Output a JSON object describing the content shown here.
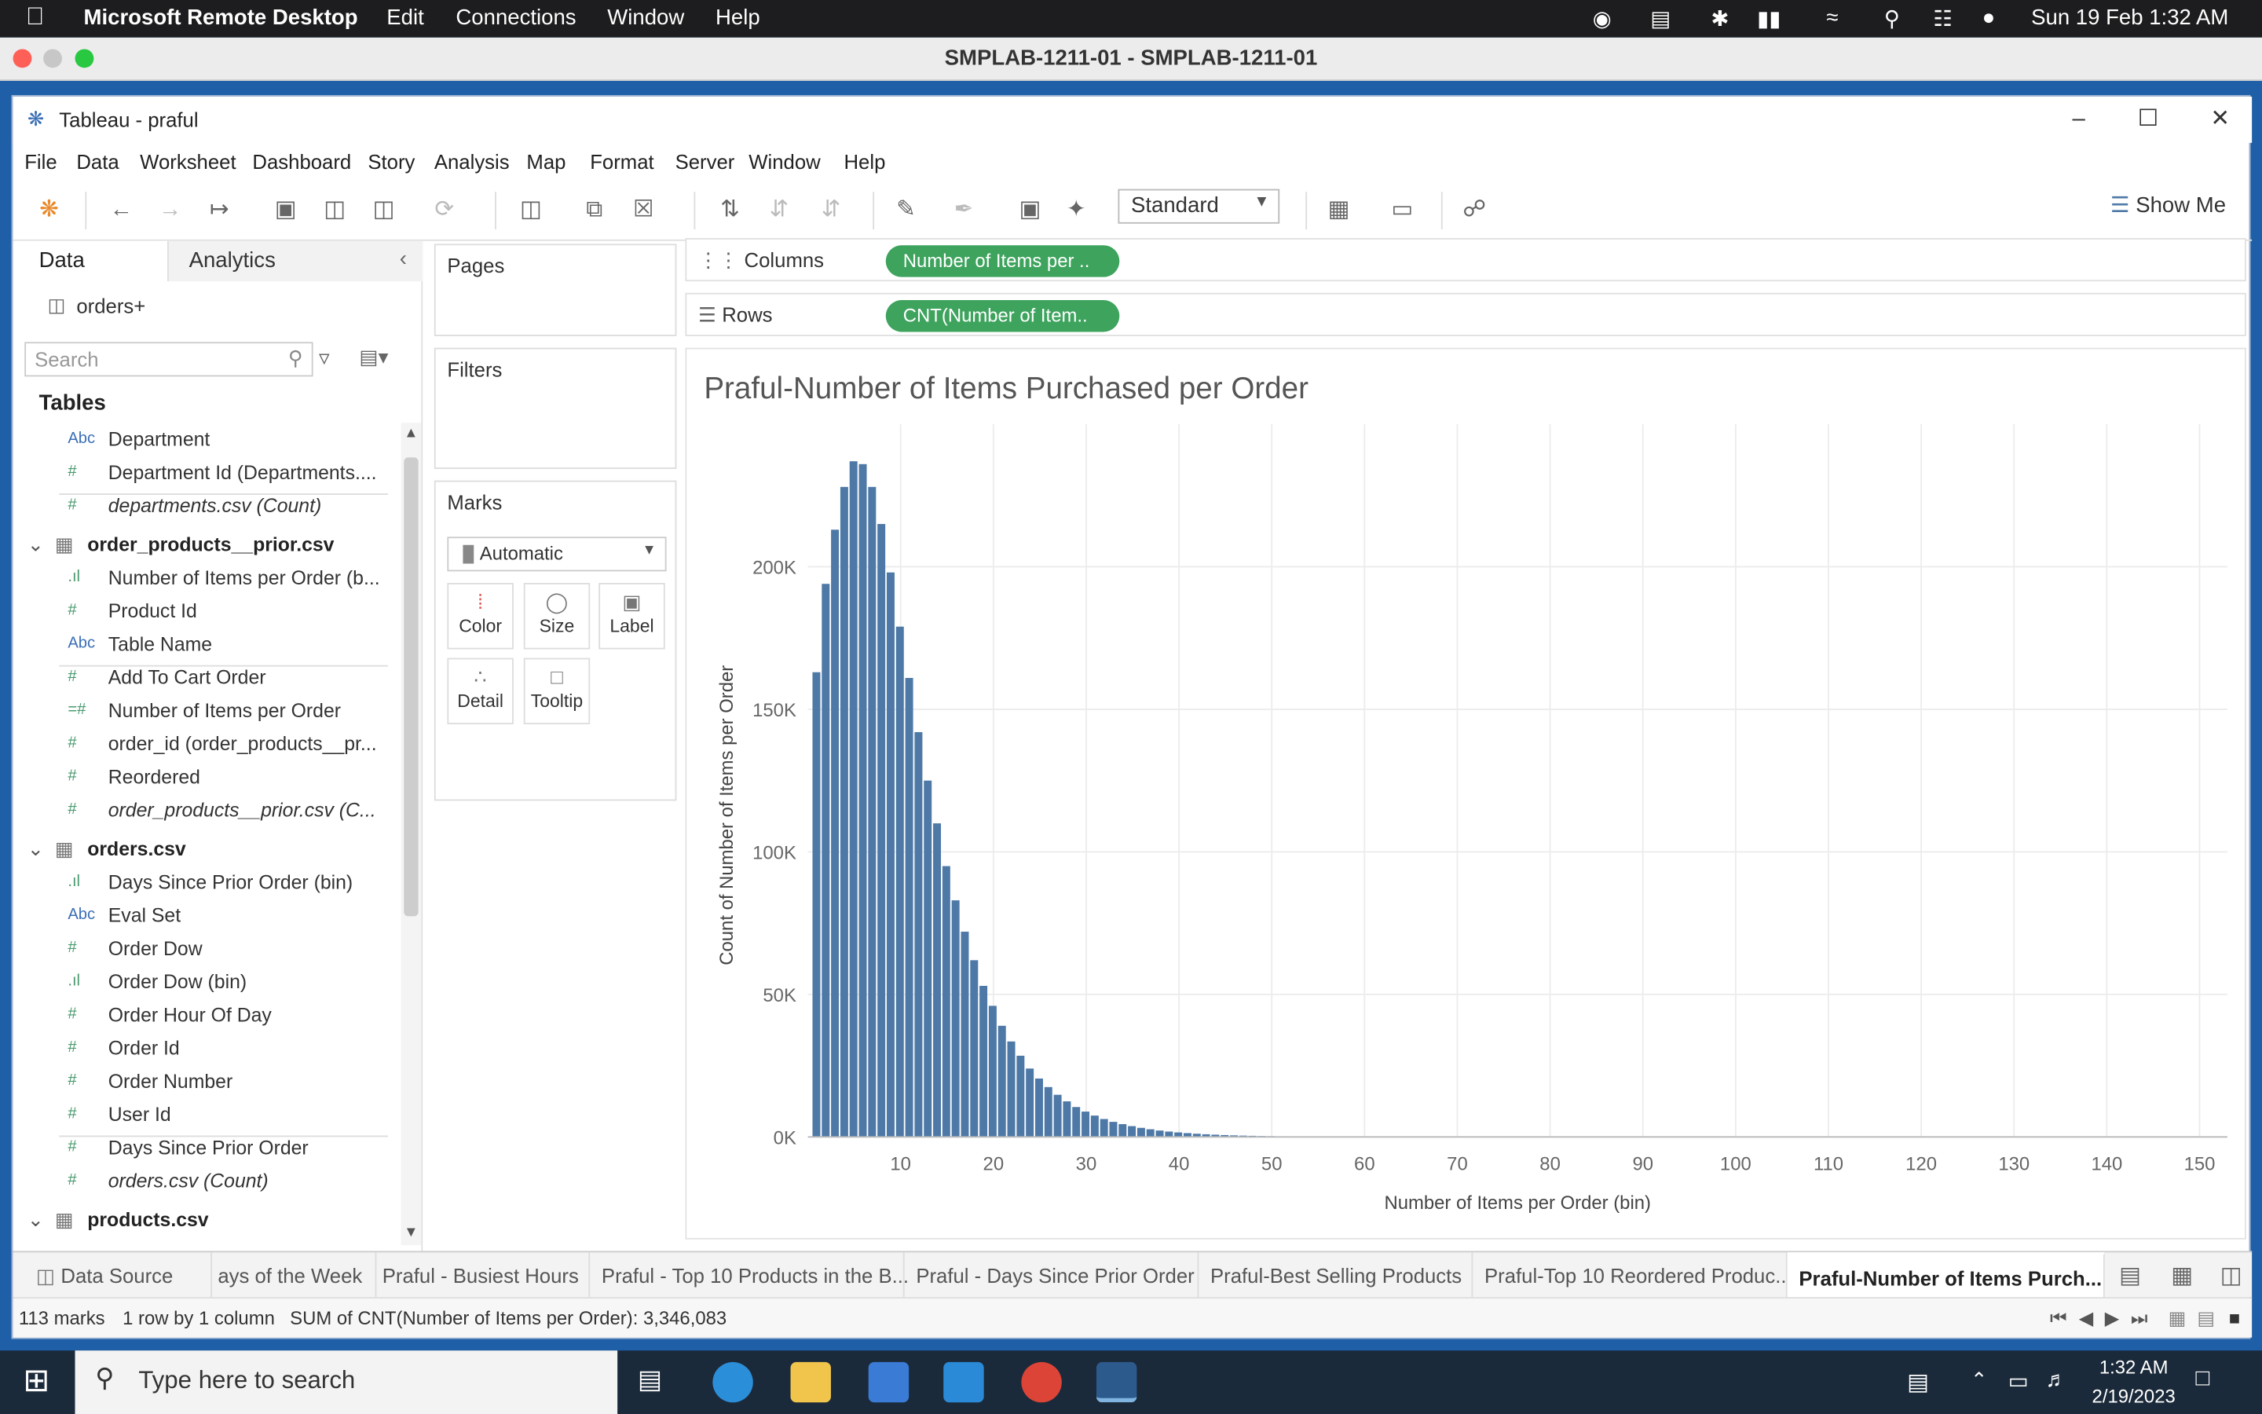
{
  "mac_menubar": {
    "app": "Microsoft Remote Desktop",
    "items": [
      "Edit",
      "Connections",
      "Window",
      "Help"
    ],
    "datetime": "Sun 19 Feb  1:32 AM"
  },
  "rdp_title": "SMPLAB-1211-01 - SMPLAB-1211-01",
  "tableau": {
    "title": "Tableau - praful",
    "menu": [
      "File",
      "Data",
      "Worksheet",
      "Dashboard",
      "Story",
      "Analysis",
      "Map",
      "Format",
      "Server",
      "Window",
      "Help"
    ],
    "fit_mode": "Standard",
    "show_me": "Show Me"
  },
  "left_pane": {
    "tab_data": "Data",
    "tab_analytics": "Analytics",
    "datasource": "orders+",
    "search_placeholder": "Search",
    "tables_heading": "Tables",
    "fields": [
      {
        "icon": "Abc",
        "name": "Department",
        "italic": false
      },
      {
        "icon": "#",
        "name": "Department Id (Departments....",
        "italic": false
      },
      {
        "icon": "#",
        "name": "departments.csv (Count)",
        "italic": true
      },
      {
        "icon": "tbl",
        "name": "order_products__prior.csv",
        "table": true
      },
      {
        "icon": "bin",
        "name": "Number of Items per Order (b...",
        "italic": false
      },
      {
        "icon": "#",
        "name": "Product Id",
        "italic": false
      },
      {
        "icon": "Abc",
        "name": "Table Name",
        "italic": false
      },
      {
        "icon": "#",
        "name": "Add To Cart Order",
        "italic": false
      },
      {
        "icon": "=#",
        "name": "Number of Items per Order",
        "italic": false
      },
      {
        "icon": "#",
        "name": "order_id (order_products__pr...",
        "italic": false
      },
      {
        "icon": "#",
        "name": "Reordered",
        "italic": false
      },
      {
        "icon": "#",
        "name": "order_products__prior.csv (C...",
        "italic": true
      },
      {
        "icon": "tbl",
        "name": "orders.csv",
        "table": true
      },
      {
        "icon": "bin",
        "name": "Days Since Prior Order (bin)",
        "italic": false
      },
      {
        "icon": "Abc",
        "name": "Eval Set",
        "italic": false
      },
      {
        "icon": "#",
        "name": "Order Dow",
        "italic": false
      },
      {
        "icon": "bin",
        "name": "Order Dow (bin)",
        "italic": false
      },
      {
        "icon": "#",
        "name": "Order Hour Of Day",
        "italic": false
      },
      {
        "icon": "#",
        "name": "Order Id",
        "italic": false
      },
      {
        "icon": "#",
        "name": "Order Number",
        "italic": false
      },
      {
        "icon": "#",
        "name": "User Id",
        "italic": false
      },
      {
        "icon": "#",
        "name": "Days Since Prior Order",
        "italic": false
      },
      {
        "icon": "#",
        "name": "orders.csv (Count)",
        "italic": true
      },
      {
        "icon": "tbl",
        "name": "products.csv",
        "table": true
      }
    ]
  },
  "cards": {
    "pages": "Pages",
    "filters": "Filters",
    "marks": "Marks",
    "mark_type": "Automatic",
    "buttons": [
      "Color",
      "Size",
      "Label",
      "Detail",
      "Tooltip"
    ]
  },
  "shelves": {
    "columns_label": "Columns",
    "columns_pill": "Number of Items per ..",
    "rows_label": "Rows",
    "rows_pill": "CNT(Number of Item.."
  },
  "chart_data": {
    "type": "bar",
    "title": "Praful-Number of Items Purchased per Order",
    "xlabel": "Number of Items per Order (bin)",
    "ylabel": "Count of Number of Items per Order",
    "xlim": [
      0,
      153
    ],
    "ylim": [
      0,
      250000
    ],
    "xticks": [
      10,
      20,
      30,
      40,
      50,
      60,
      70,
      80,
      90,
      100,
      110,
      120,
      130,
      140,
      150
    ],
    "yticks": [
      0,
      50000,
      100000,
      150000,
      200000
    ],
    "ytick_labels": [
      "0K",
      "50K",
      "100K",
      "150K",
      "200K"
    ],
    "grid": true,
    "bar_color": "#4e79a7",
    "x": [
      1,
      2,
      3,
      4,
      5,
      6,
      7,
      8,
      9,
      10,
      11,
      12,
      13,
      14,
      15,
      16,
      17,
      18,
      19,
      20,
      21,
      22,
      23,
      24,
      25,
      26,
      27,
      28,
      29,
      30,
      31,
      32,
      33,
      34,
      35,
      36,
      37,
      38,
      39,
      40,
      41,
      42,
      43,
      44,
      45,
      46,
      47,
      48,
      49,
      50,
      51,
      52,
      53,
      54,
      55
    ],
    "values": [
      163000,
      194000,
      213000,
      228000,
      237000,
      236000,
      228000,
      215000,
      198000,
      179000,
      161000,
      142000,
      125000,
      110000,
      95000,
      83000,
      72000,
      62000,
      53000,
      46000,
      39000,
      33500,
      28500,
      24000,
      20500,
      17500,
      14800,
      12500,
      10500,
      8900,
      7500,
      6300,
      5300,
      4500,
      3800,
      3200,
      2700,
      2250,
      1900,
      1600,
      1350,
      1130,
      950,
      800,
      670,
      560,
      470,
      400,
      330,
      280,
      240,
      200,
      170,
      140,
      120
    ]
  },
  "sheet_tabs": {
    "data_source": "Data Source",
    "tabs": [
      "ays of the Week",
      "Praful - Busiest Hours",
      "Praful - Top 10 Products in the B...",
      "Praful - Days Since Prior Order",
      "Praful-Best Selling Products",
      "Praful-Top 10 Reordered Produc...",
      "Praful-Number of Items Purch..."
    ],
    "active_index": 6
  },
  "status": {
    "marks": "113 marks",
    "rows": "1 row by 1 column",
    "sum": "SUM of CNT(Number of Items per Order): 3,346,083"
  },
  "taskbar": {
    "search_placeholder": "Type here to search",
    "time": "1:32 AM",
    "date": "2/19/2023"
  }
}
